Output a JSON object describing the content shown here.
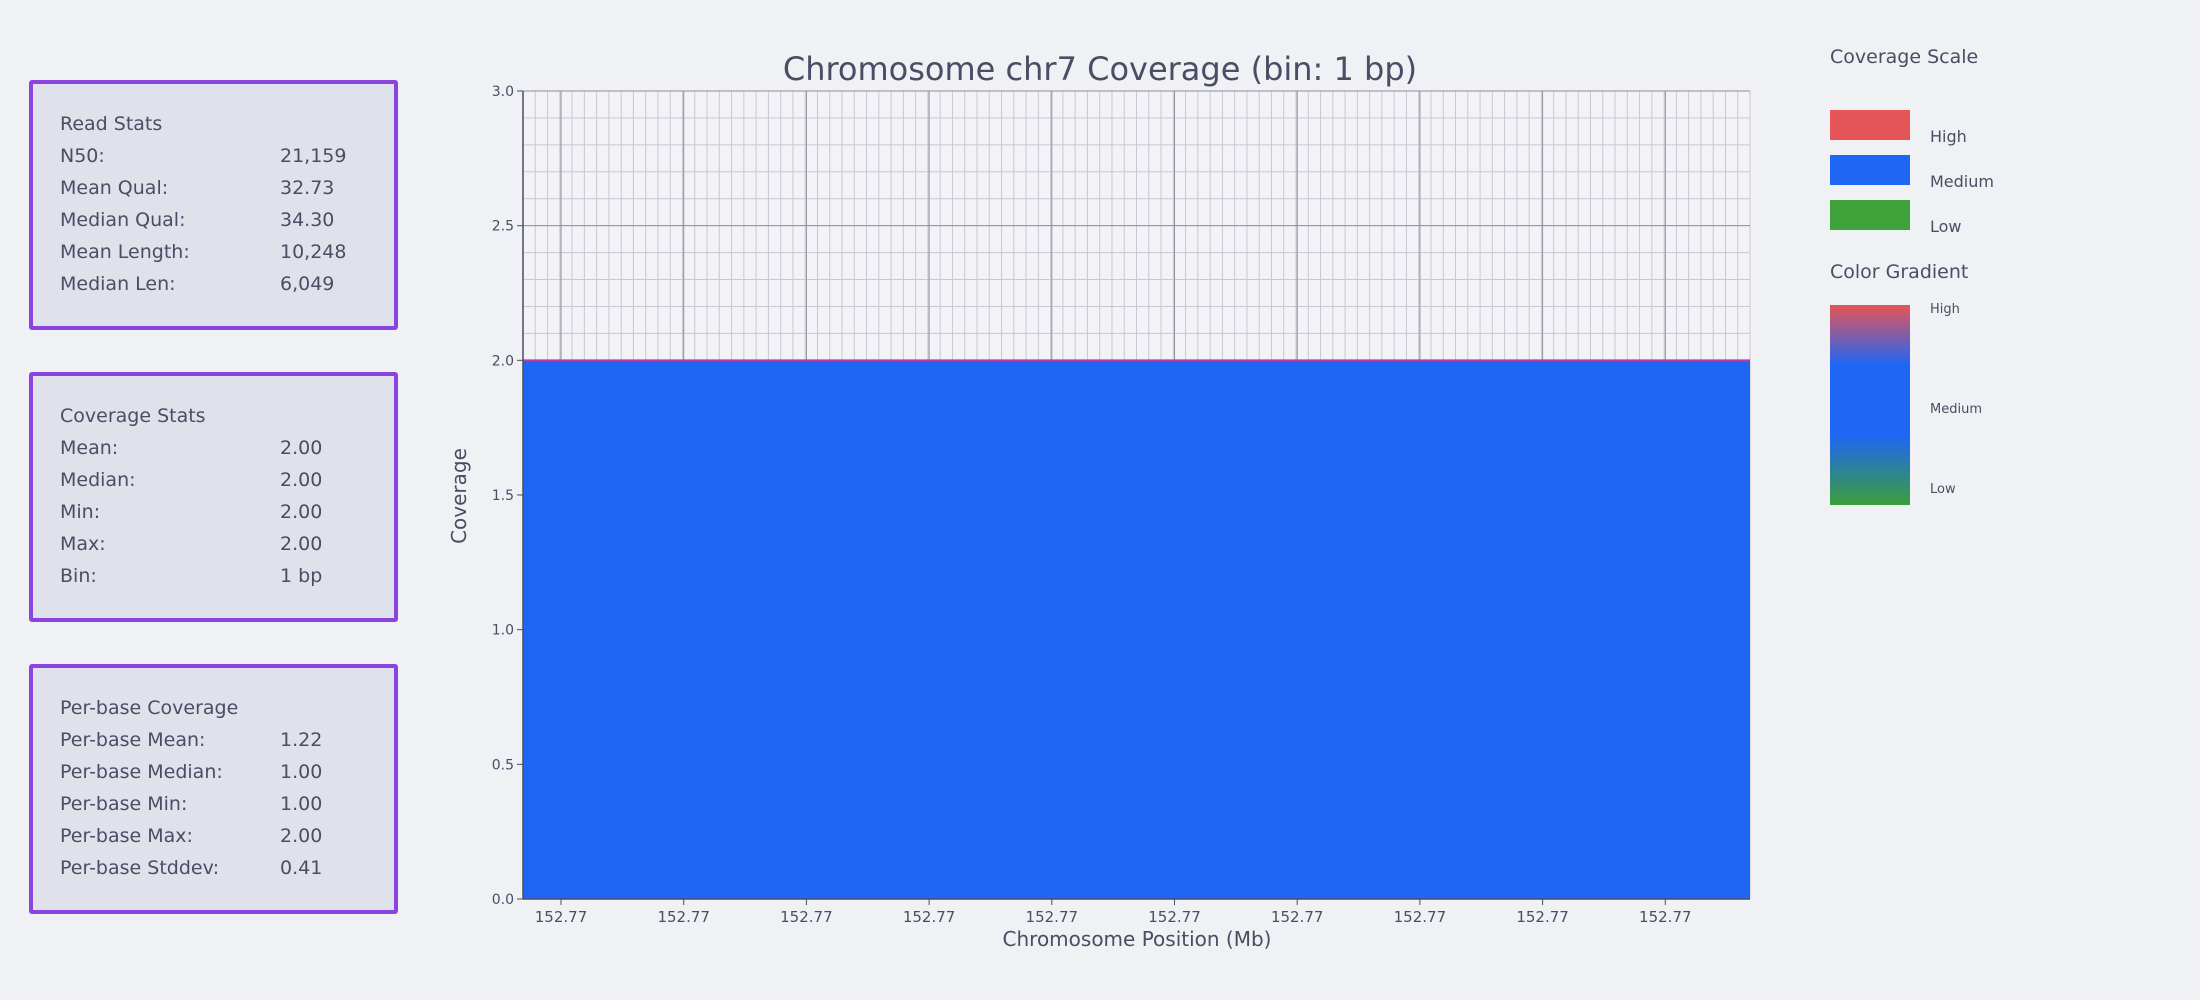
{
  "panels": {
    "read_stats": {
      "title": "Read Stats",
      "rows": [
        {
          "k": "N50:",
          "v": "21,159"
        },
        {
          "k": "Mean Qual:",
          "v": "32.73"
        },
        {
          "k": "Median Qual:",
          "v": "34.30"
        },
        {
          "k": "Mean Length:",
          "v": "10,248"
        },
        {
          "k": "Median Len:",
          "v": "6,049"
        }
      ]
    },
    "coverage_stats": {
      "title": "Coverage Stats",
      "rows": [
        {
          "k": "Mean:",
          "v": "2.00"
        },
        {
          "k": "Median:",
          "v": "2.00"
        },
        {
          "k": "Min:",
          "v": "2.00"
        },
        {
          "k": "Max:",
          "v": "2.00"
        },
        {
          "k": "Bin:",
          "v": "1 bp"
        }
      ]
    },
    "perbase": {
      "title": "Per-base Coverage",
      "rows": [
        {
          "k": "Per-base Mean:",
          "v": "1.22"
        },
        {
          "k": "Per-base Median:",
          "v": "1.00"
        },
        {
          "k": "Per-base Min:",
          "v": "1.00"
        },
        {
          "k": "Per-base Max:",
          "v": "2.00"
        },
        {
          "k": "Per-base Stddev:",
          "v": "0.41"
        }
      ]
    }
  },
  "legend": {
    "scale_title": "Coverage Scale",
    "items": [
      {
        "label": "High",
        "color": "#e55557"
      },
      {
        "label": "Medium",
        "color": "#1f66f5"
      },
      {
        "label": "Low",
        "color": "#3fa23a"
      }
    ],
    "gradient_title": "Color Gradient",
    "gradient_labels": [
      "High",
      "Medium",
      "Low"
    ]
  },
  "chart_data": {
    "type": "area",
    "title": "Chromosome chr7 Coverage (bin: 1 bp)",
    "xlabel": "Chromosome Position (Mb)",
    "ylabel": "Coverage",
    "ylim": [
      0,
      3.0
    ],
    "yticks": [
      "0.0",
      "0.5",
      "1.0",
      "1.5",
      "2.0",
      "2.5",
      "3.0"
    ],
    "xtick_labels": [
      "152.77",
      "152.77",
      "152.77",
      "152.77",
      "152.77",
      "152.77",
      "152.77",
      "152.77",
      "152.77",
      "152.77"
    ],
    "series": [
      {
        "values": [
          2.0,
          2.0
        ],
        "color": "#1f66f5",
        "edge_color": "#c03aa0"
      }
    ],
    "grid": true
  }
}
